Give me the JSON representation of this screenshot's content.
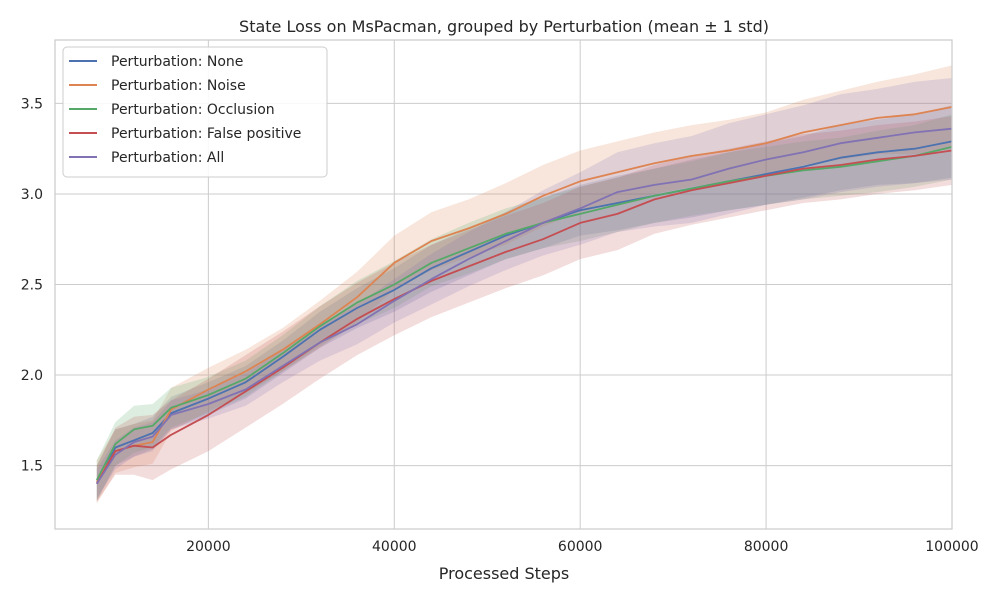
{
  "chart_data": {
    "type": "line",
    "title": "State Loss on MsPacman, grouped by Perturbation (mean ± 1 std)",
    "xlabel": "Processed Steps",
    "ylabel": "",
    "xlim": [
      3500,
      100000
    ],
    "ylim": [
      1.15,
      3.85
    ],
    "xticks": [
      20000,
      40000,
      60000,
      80000,
      100000
    ],
    "yticks": [
      1.5,
      2.0,
      2.5,
      3.0,
      3.5
    ],
    "grid": true,
    "legend_position": "top-left",
    "x": [
      8000,
      10000,
      12000,
      14000,
      16000,
      20000,
      24000,
      28000,
      32000,
      36000,
      40000,
      44000,
      48000,
      52000,
      56000,
      60000,
      64000,
      68000,
      72000,
      76000,
      80000,
      84000,
      88000,
      92000,
      96000,
      100000
    ],
    "series": [
      {
        "name": "Perturbation: None",
        "color": "#4c72b0",
        "values": [
          1.4,
          1.6,
          1.64,
          1.68,
          1.79,
          1.87,
          1.96,
          2.1,
          2.25,
          2.37,
          2.47,
          2.59,
          2.68,
          2.77,
          2.84,
          2.91,
          2.95,
          2.99,
          3.03,
          3.07,
          3.11,
          3.15,
          3.2,
          3.23,
          3.25,
          3.29
        ],
        "std": [
          0.1,
          0.1,
          0.09,
          0.09,
          0.09,
          0.09,
          0.09,
          0.09,
          0.1,
          0.11,
          0.12,
          0.13,
          0.13,
          0.13,
          0.14,
          0.14,
          0.15,
          0.15,
          0.16,
          0.16,
          0.17,
          0.17,
          0.18,
          0.18,
          0.19,
          0.2
        ]
      },
      {
        "name": "Perturbation: Noise",
        "color": "#dd8452",
        "values": [
          1.41,
          1.58,
          1.61,
          1.63,
          1.81,
          1.92,
          2.02,
          2.14,
          2.28,
          2.43,
          2.62,
          2.74,
          2.81,
          2.89,
          2.99,
          3.07,
          3.12,
          3.17,
          3.21,
          3.24,
          3.28,
          3.34,
          3.38,
          3.42,
          3.44,
          3.48
        ],
        "std": [
          0.12,
          0.12,
          0.12,
          0.12,
          0.12,
          0.12,
          0.12,
          0.12,
          0.13,
          0.14,
          0.15,
          0.16,
          0.16,
          0.17,
          0.17,
          0.17,
          0.17,
          0.17,
          0.17,
          0.17,
          0.17,
          0.18,
          0.19,
          0.2,
          0.22,
          0.23
        ]
      },
      {
        "name": "Perturbation: Occlusion",
        "color": "#55a868",
        "values": [
          1.42,
          1.62,
          1.7,
          1.72,
          1.82,
          1.89,
          1.98,
          2.12,
          2.27,
          2.4,
          2.5,
          2.62,
          2.7,
          2.78,
          2.84,
          2.89,
          2.94,
          2.99,
          3.03,
          3.07,
          3.1,
          3.13,
          3.15,
          3.18,
          3.21,
          3.26
        ],
        "std": [
          0.11,
          0.12,
          0.13,
          0.12,
          0.11,
          0.1,
          0.1,
          0.1,
          0.11,
          0.12,
          0.13,
          0.13,
          0.14,
          0.14,
          0.14,
          0.15,
          0.15,
          0.15,
          0.15,
          0.16,
          0.16,
          0.16,
          0.16,
          0.17,
          0.17,
          0.18
        ]
      },
      {
        "name": "Perturbation: False positive",
        "color": "#c44e52",
        "values": [
          1.4,
          1.58,
          1.61,
          1.6,
          1.67,
          1.78,
          1.91,
          2.04,
          2.18,
          2.31,
          2.42,
          2.52,
          2.6,
          2.68,
          2.75,
          2.84,
          2.89,
          2.97,
          3.02,
          3.06,
          3.1,
          3.14,
          3.16,
          3.19,
          3.21,
          3.24
        ],
        "std": [
          0.1,
          0.13,
          0.16,
          0.18,
          0.19,
          0.2,
          0.2,
          0.2,
          0.2,
          0.2,
          0.2,
          0.2,
          0.2,
          0.2,
          0.2,
          0.2,
          0.2,
          0.19,
          0.19,
          0.19,
          0.19,
          0.19,
          0.19,
          0.19,
          0.19,
          0.19
        ]
      },
      {
        "name": "Perturbation: All",
        "color": "#8172b3",
        "values": [
          1.4,
          1.56,
          1.63,
          1.66,
          1.78,
          1.84,
          1.92,
          2.05,
          2.18,
          2.28,
          2.41,
          2.53,
          2.64,
          2.74,
          2.84,
          2.92,
          3.01,
          3.05,
          3.08,
          3.14,
          3.19,
          3.23,
          3.28,
          3.31,
          3.34,
          3.36
        ],
        "std": [
          0.08,
          0.08,
          0.08,
          0.08,
          0.08,
          0.08,
          0.09,
          0.09,
          0.1,
          0.11,
          0.12,
          0.14,
          0.15,
          0.16,
          0.18,
          0.2,
          0.22,
          0.23,
          0.24,
          0.25,
          0.25,
          0.26,
          0.27,
          0.27,
          0.28,
          0.28
        ]
      }
    ]
  }
}
